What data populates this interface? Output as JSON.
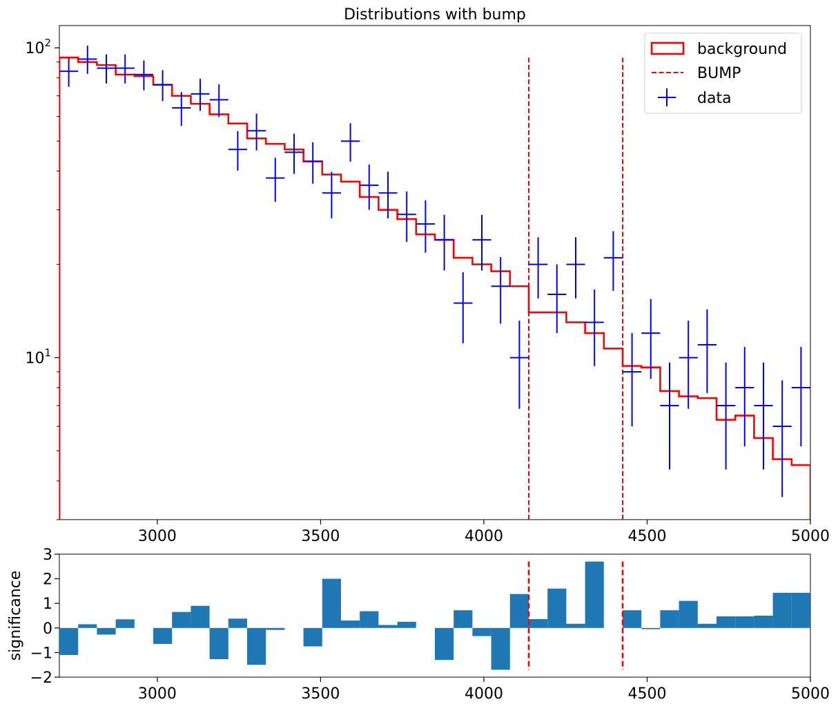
{
  "chart_data": [
    {
      "type": "histogram-step-errorbar",
      "title": "Distributions with bump",
      "yscale": "log",
      "xlim": [
        2700,
        5000
      ],
      "ylim": [
        3,
        118
      ],
      "x_ticks": [
        3000,
        3500,
        4000,
        4500,
        5000
      ],
      "y_ticks": [
        {
          "value": 10,
          "base": "10",
          "exp": "1"
        },
        {
          "value": 100,
          "base": "10",
          "exp": "2"
        }
      ],
      "legend": {
        "position": "top-right",
        "entries": [
          {
            "label": "background",
            "key": "background"
          },
          {
            "label": "BUMP",
            "key": "bump"
          },
          {
            "label": "data",
            "key": "data"
          }
        ]
      },
      "colors": {
        "background": "#ff0000",
        "bump": "#ff0000",
        "data": "#0000ff"
      },
      "bin_edges": [
        2700,
        2757.5,
        2815,
        2872.5,
        2930,
        2987.5,
        3045,
        3102.5,
        3160,
        3217.5,
        3275,
        3332.5,
        3390,
        3447.5,
        3505,
        3562.5,
        3620,
        3677.5,
        3735,
        3792.5,
        3850,
        3907.5,
        3965,
        4022.5,
        4080,
        4137.5,
        4195,
        4252.5,
        4310,
        4367.5,
        4425,
        4482.5,
        4540,
        4597.5,
        4655,
        4712.5,
        4770,
        4827.5,
        4885,
        4942.5,
        5000
      ],
      "background": [
        93,
        90,
        88,
        82,
        81,
        76,
        70,
        66,
        61,
        57,
        51,
        49,
        47,
        43,
        39,
        37,
        33,
        30,
        28,
        25,
        24,
        21,
        20,
        19,
        17,
        14,
        14,
        13,
        12,
        10.7,
        9.4,
        9.3,
        7.8,
        7.5,
        7.4,
        6.3,
        6.5,
        5.5,
        4.7,
        4.5
      ],
      "data": [
        84,
        92,
        86,
        86,
        82,
        76,
        64,
        71,
        68,
        47,
        54,
        38,
        46,
        43,
        34,
        50,
        36,
        34,
        29,
        27,
        24,
        15,
        24,
        17,
        10,
        20,
        16,
        20,
        13,
        21,
        9,
        12,
        7,
        10,
        11,
        7,
        8,
        7,
        6,
        8
      ],
      "bump_range": [
        4137.5,
        4425
      ]
    },
    {
      "type": "bar",
      "ylabel": "significance",
      "xlim": [
        2700,
        5000
      ],
      "ylim": [
        -2,
        3
      ],
      "x_ticks": [
        3000,
        3500,
        4000,
        4500,
        5000
      ],
      "y_ticks": [
        -2,
        -1,
        0,
        1,
        2,
        3
      ],
      "bar_color": "#1f77b4",
      "bump_color": "#ff0000",
      "values": [
        -1.1,
        0.15,
        -0.27,
        0.35,
        0,
        -0.65,
        0.65,
        0.9,
        -1.27,
        0.38,
        -1.5,
        -0.08,
        0,
        -0.75,
        2.0,
        0.3,
        0.68,
        0.12,
        0.25,
        0,
        -1.3,
        0.72,
        -0.33,
        -1.7,
        1.38,
        0.36,
        1.6,
        0.17,
        2.7,
        0,
        0.72,
        -0.05,
        0.72,
        1.1,
        0.17,
        0.47,
        0.47,
        0.5,
        1.43,
        1.43
      ],
      "bump_range": [
        4137.5,
        4425
      ]
    }
  ]
}
